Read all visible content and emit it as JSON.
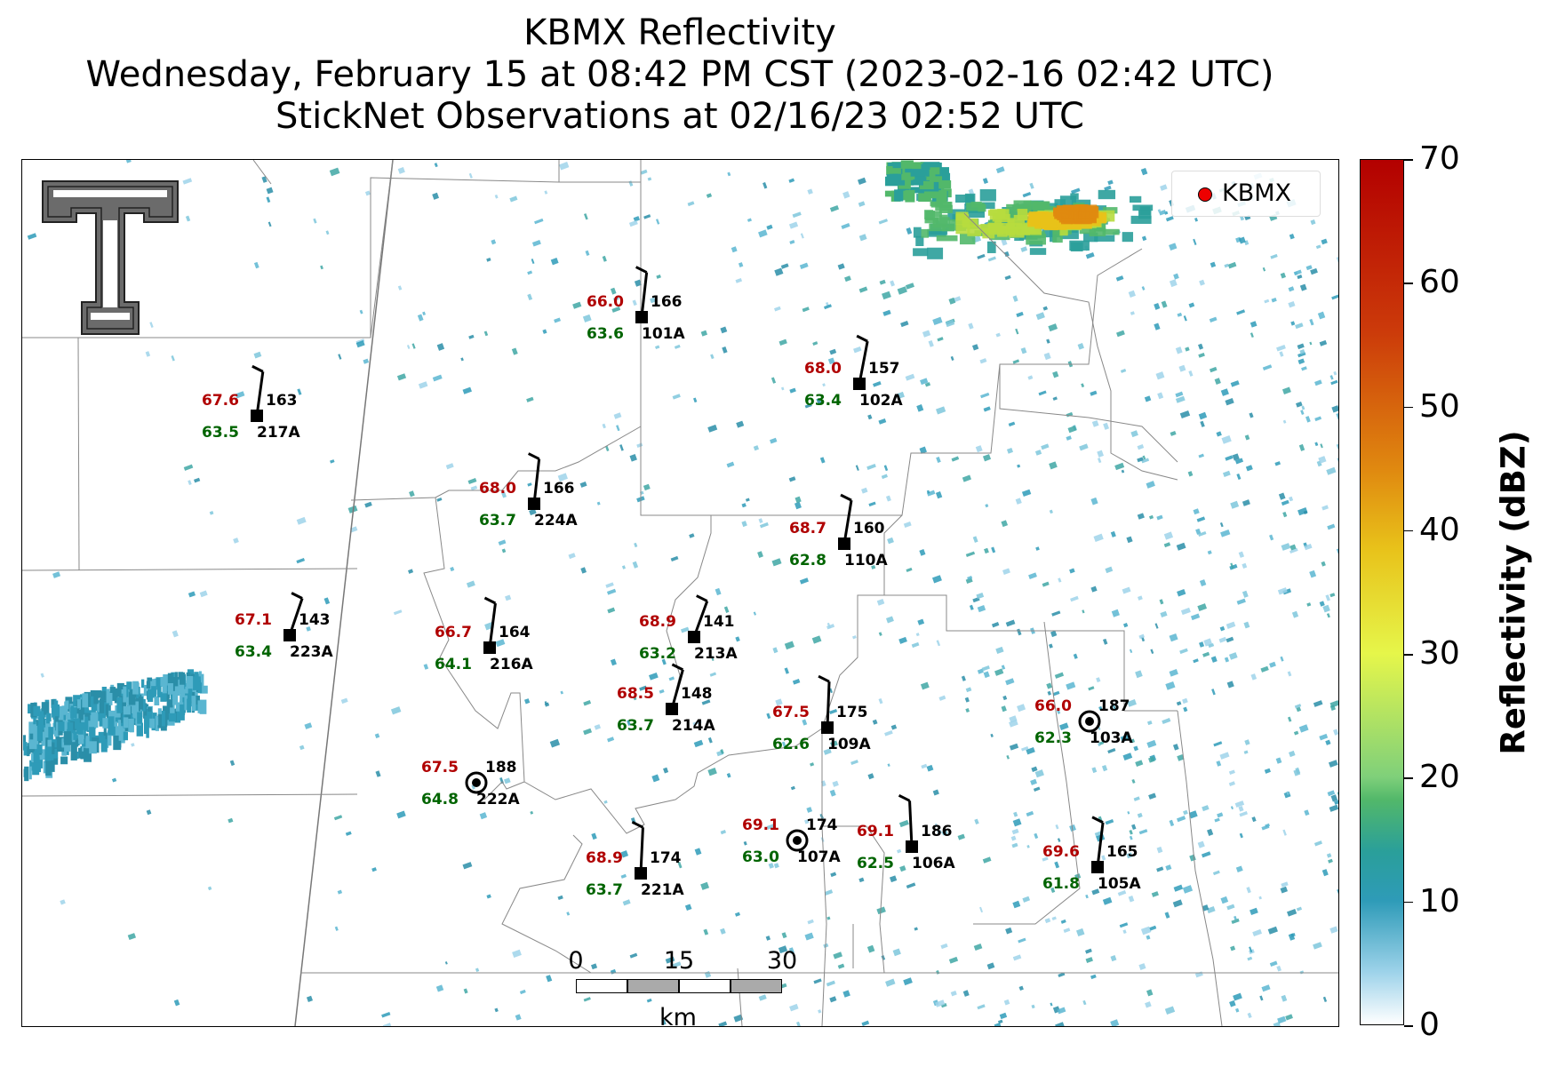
{
  "title": {
    "line1": "KBMX Reflectivity",
    "line2": "Wednesday, February 15 at 08:42 PM CST (2023-02-16 02:42 UTC)",
    "line3": "StickNet Observations at 02/16/23 02:52 UTC"
  },
  "legend": {
    "radar_label": "KBMX",
    "marker_color": "#ee0000"
  },
  "colorbar": {
    "label": "Reflectivity (dBZ)",
    "ticks": [
      "0",
      "10",
      "20",
      "30",
      "40",
      "50",
      "60",
      "70"
    ]
  },
  "scalebar": {
    "ticks": [
      "0",
      "15",
      "30"
    ],
    "unit": "km"
  },
  "stations": [
    {
      "id": "101A",
      "temp": "66.0",
      "dew": "63.6",
      "dir": "166",
      "mark": "square"
    },
    {
      "id": "102A",
      "temp": "68.0",
      "dew": "63.4",
      "dir": "157",
      "mark": "square"
    },
    {
      "id": "217A",
      "temp": "67.6",
      "dew": "63.5",
      "dir": "163",
      "mark": "square"
    },
    {
      "id": "224A",
      "temp": "68.0",
      "dew": "63.7",
      "dir": "166",
      "mark": "square"
    },
    {
      "id": "110A",
      "temp": "68.7",
      "dew": "62.8",
      "dir": "160",
      "mark": "square"
    },
    {
      "id": "223A",
      "temp": "67.1",
      "dew": "63.4",
      "dir": "143",
      "mark": "square"
    },
    {
      "id": "216A",
      "temp": "66.7",
      "dew": "64.1",
      "dir": "164",
      "mark": "square"
    },
    {
      "id": "213A",
      "temp": "68.9",
      "dew": "63.2",
      "dir": "141",
      "mark": "square"
    },
    {
      "id": "214A",
      "temp": "68.5",
      "dew": "63.7",
      "dir": "148",
      "mark": "square"
    },
    {
      "id": "109A",
      "temp": "67.5",
      "dew": "62.6",
      "dir": "175",
      "mark": "square"
    },
    {
      "id": "103A",
      "temp": "66.0",
      "dew": "62.3",
      "dir": "187",
      "mark": "calm"
    },
    {
      "id": "222A",
      "temp": "67.5",
      "dew": "64.8",
      "dir": "188",
      "mark": "calm"
    },
    {
      "id": "107A",
      "temp": "69.1",
      "dew": "63.0",
      "dir": "174",
      "mark": "calm"
    },
    {
      "id": "106A",
      "temp": "69.1",
      "dew": "62.5",
      "dir": "186",
      "mark": "square"
    },
    {
      "id": "221A",
      "temp": "68.9",
      "dew": "63.7",
      "dir": "174",
      "mark": "square"
    },
    {
      "id": "105A",
      "temp": "69.6",
      "dew": "61.8",
      "dir": "165",
      "mark": "square"
    }
  ]
}
